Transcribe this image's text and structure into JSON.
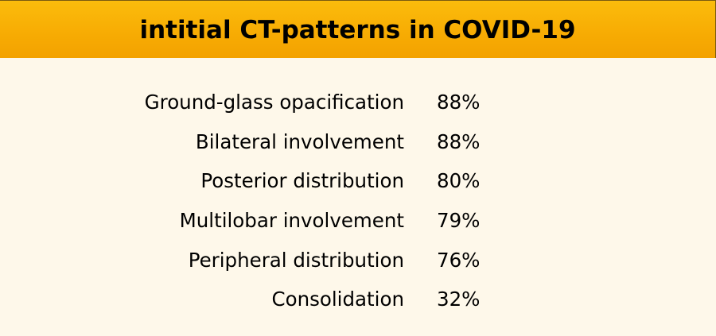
{
  "header": {
    "title": "intitial CT-patterns in COVID-19"
  },
  "rows": [
    {
      "label": "Ground-glass opacification",
      "value": "88%"
    },
    {
      "label": "Bilateral involvement",
      "value": "88%"
    },
    {
      "label": "Posterior distribution",
      "value": "80%"
    },
    {
      "label": "Multilobar involvement",
      "value": "79%"
    },
    {
      "label": "Peripheral distribution",
      "value": "76%"
    },
    {
      "label": "Consolidation",
      "value": "32%"
    }
  ],
  "colors": {
    "header_background": "#f7ab03",
    "page_background": "#fef8ea",
    "text": "#000000"
  }
}
